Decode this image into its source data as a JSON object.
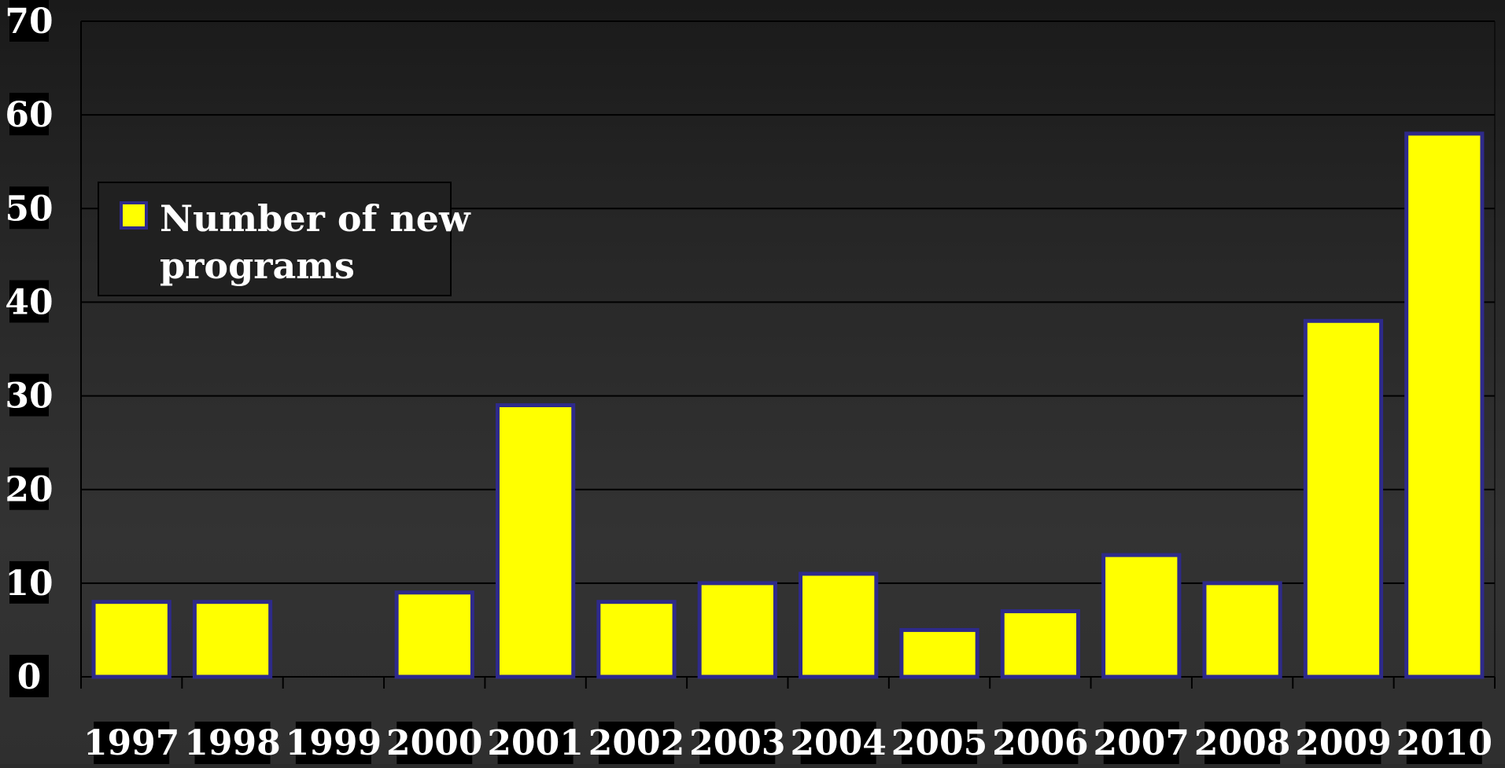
{
  "chart_data": {
    "type": "bar",
    "categories": [
      "1997",
      "1998",
      "1999",
      "2000",
      "2001",
      "2002",
      "2003",
      "2004",
      "2005",
      "2006",
      "2007",
      "2008",
      "2009",
      "2010"
    ],
    "series": [
      {
        "name": "Number of new programs",
        "values": [
          8,
          8,
          0,
          9,
          29,
          8,
          10,
          11,
          5,
          7,
          13,
          10,
          38,
          58
        ]
      }
    ],
    "title": "",
    "xlabel": "",
    "ylabel": "",
    "ylim": [
      0,
      70
    ],
    "yticks": [
      "0",
      "10",
      "20",
      "30",
      "40",
      "50",
      "60",
      "70"
    ],
    "grid": true,
    "legend_position": "top-left",
    "legend_lines": [
      "Number of new",
      "programs"
    ],
    "colors": {
      "bar_fill": "#ffff00",
      "bar_stroke": "#2e2a8a",
      "grid": "#000000",
      "label_background": "#000000",
      "label_text": "#ffffff"
    }
  }
}
